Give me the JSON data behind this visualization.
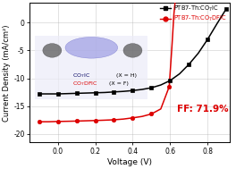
{
  "title": "",
  "xlabel": "Voltage (V)",
  "ylabel": "Current Density (mA/cm²)",
  "xlim": [
    -0.15,
    0.92
  ],
  "ylim": [
    -21.5,
    3.5
  ],
  "background_color": "#ffffff",
  "legend1": "PTB7-Th:CO$_7$IC",
  "legend2": "PTB7-Th:CO$_7$DFIC",
  "label1_black": "CO$_7$IC",
  "label2_red": "CO$_7$DFIC",
  "label1_suffix": "     (X = H)",
  "label2_suffix": " (X = F)",
  "ff_text": "FF: 71.9%",
  "curve1_color": "#000000",
  "curve2_color": "#dd0000",
  "marker1": "s",
  "marker2": "o",
  "xticks": [
    0.0,
    0.2,
    0.4,
    0.6,
    0.8
  ],
  "yticks": [
    -20,
    -15,
    -10,
    -5,
    0
  ],
  "curve1_x": [
    -0.1,
    -0.05,
    0.0,
    0.05,
    0.1,
    0.15,
    0.2,
    0.25,
    0.3,
    0.35,
    0.4,
    0.45,
    0.5,
    0.55,
    0.6,
    0.65,
    0.7,
    0.75,
    0.8,
    0.85,
    0.9
  ],
  "curve1_y": [
    -12.8,
    -12.8,
    -12.8,
    -12.75,
    -12.7,
    -12.65,
    -12.6,
    -12.55,
    -12.45,
    -12.35,
    -12.2,
    -12.0,
    -11.7,
    -11.2,
    -10.4,
    -9.2,
    -7.5,
    -5.5,
    -3.0,
    -0.2,
    2.5
  ],
  "curve2_x": [
    -0.1,
    -0.05,
    0.0,
    0.05,
    0.1,
    0.15,
    0.2,
    0.25,
    0.3,
    0.35,
    0.4,
    0.45,
    0.5,
    0.55,
    0.595,
    0.61,
    0.62,
    0.63
  ],
  "curve2_y": [
    -17.8,
    -17.8,
    -17.75,
    -17.72,
    -17.68,
    -17.63,
    -17.58,
    -17.52,
    -17.45,
    -17.32,
    -17.1,
    -16.85,
    -16.4,
    -15.5,
    -11.5,
    -4.0,
    1.5,
    5.0
  ],
  "curve1_markers_x": [
    -0.1,
    0.0,
    0.1,
    0.2,
    0.3,
    0.4,
    0.5,
    0.6,
    0.7,
    0.8,
    0.9
  ],
  "curve1_markers_y": [
    -12.8,
    -12.8,
    -12.7,
    -12.6,
    -12.45,
    -12.2,
    -11.7,
    -10.4,
    -7.5,
    -3.0,
    2.5
  ],
  "curve2_markers_x": [
    -0.1,
    0.0,
    0.1,
    0.2,
    0.3,
    0.4,
    0.5,
    0.595
  ],
  "curve2_markers_y": [
    -17.8,
    -17.75,
    -17.68,
    -17.58,
    -17.45,
    -17.1,
    -16.4,
    -11.5
  ]
}
